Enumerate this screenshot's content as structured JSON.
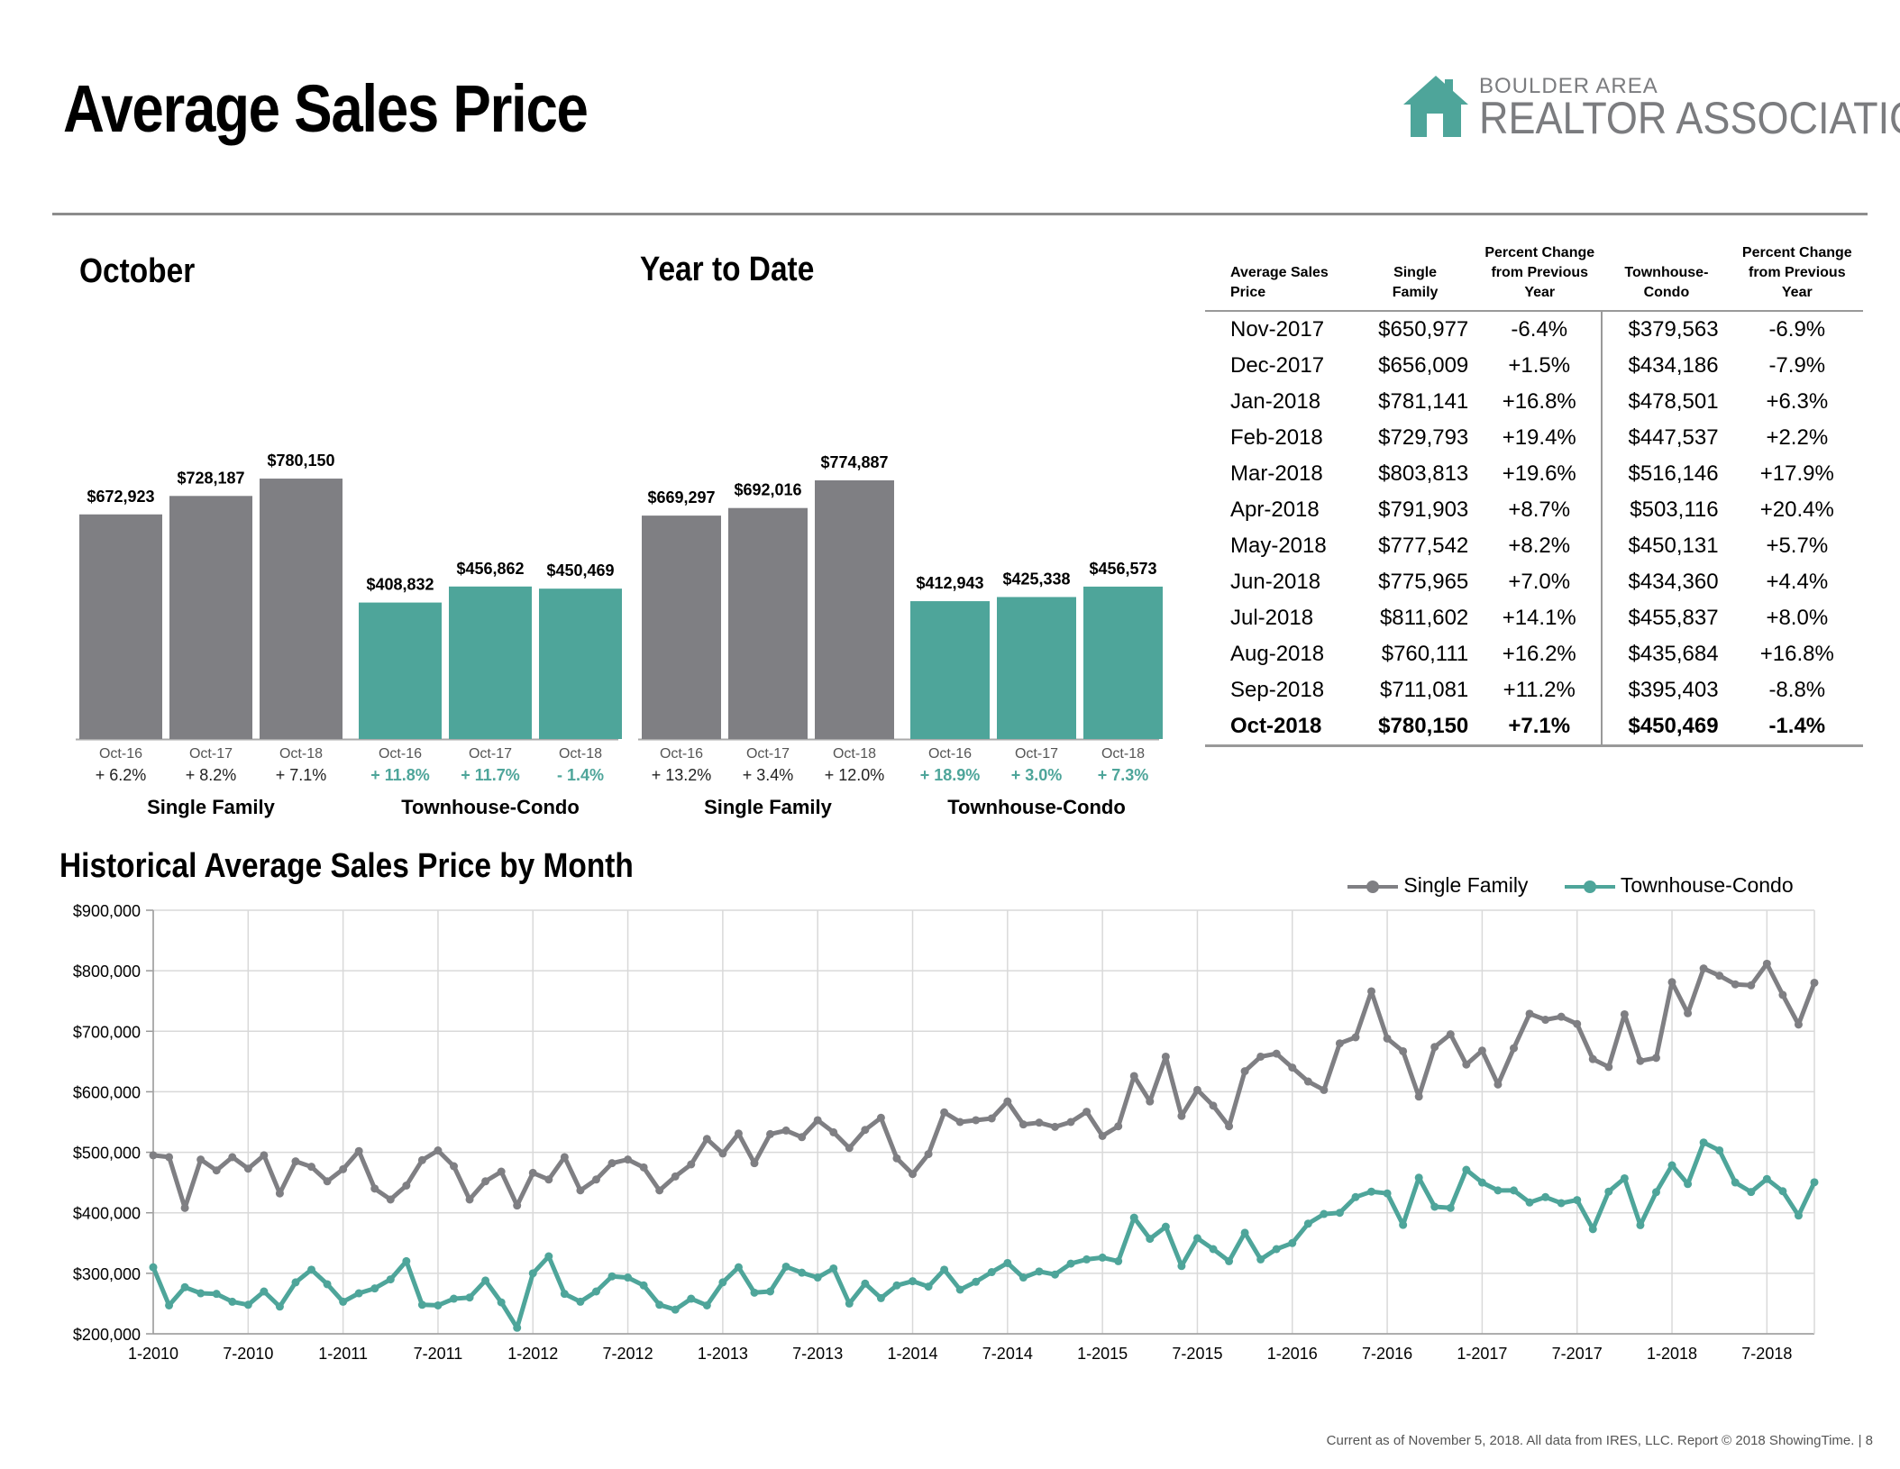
{
  "header": {
    "title": "Average Sales Price",
    "logo": {
      "line1": "BOULDER AREA",
      "line2": "REALTOR ASSOCIATION",
      "icon": "house-icon",
      "color": "#4ea59a"
    }
  },
  "colors": {
    "single_family": "#7f7f83",
    "townhouse_condo": "#4ea59a"
  },
  "bar_panels": [
    {
      "title": "October",
      "groups": [
        {
          "name": "Single Family",
          "categories": [
            "Oct-16",
            "Oct-17",
            "Oct-18"
          ],
          "values": [
            672923,
            728187,
            780150
          ],
          "value_labels": [
            "$672,923",
            "$728,187",
            "$780,150"
          ],
          "changes": [
            "+ 6.2%",
            "+ 8.2%",
            "+ 7.1%"
          ]
        },
        {
          "name": "Townhouse-Condo",
          "categories": [
            "Oct-16",
            "Oct-17",
            "Oct-18"
          ],
          "values": [
            408832,
            456862,
            450469
          ],
          "value_labels": [
            "$408,832",
            "$456,862",
            "$450,469"
          ],
          "changes": [
            "+ 11.8%",
            "+ 11.7%",
            "- 1.4%"
          ]
        }
      ]
    },
    {
      "title": "Year to Date",
      "groups": [
        {
          "name": "Single Family",
          "categories": [
            "Oct-16",
            "Oct-17",
            "Oct-18"
          ],
          "values": [
            669297,
            692016,
            774887
          ],
          "value_labels": [
            "$669,297",
            "$692,016",
            "$774,887"
          ],
          "changes": [
            "+ 13.2%",
            "+ 3.4%",
            "+ 12.0%"
          ]
        },
        {
          "name": "Townhouse-Condo",
          "categories": [
            "Oct-16",
            "Oct-17",
            "Oct-18"
          ],
          "values": [
            412943,
            425338,
            456573
          ],
          "value_labels": [
            "$412,943",
            "$425,338",
            "$456,573"
          ],
          "changes": [
            "+ 18.9%",
            "+ 3.0%",
            "+ 7.3%"
          ]
        }
      ]
    }
  ],
  "table": {
    "headers": [
      "Average Sales\nPrice",
      "Single\nFamily",
      "Percent Change\nfrom Previous\nYear",
      "Townhouse-\nCondo",
      "Percent Change\nfrom Previous\nYear"
    ],
    "rows": [
      [
        "Nov-2017",
        "$650,977",
        "-6.4%",
        "$379,563",
        "-6.9%"
      ],
      [
        "Dec-2017",
        "$656,009",
        "+1.5%",
        "$434,186",
        "-7.9%"
      ],
      [
        "Jan-2018",
        "$781,141",
        "+16.8%",
        "$478,501",
        "+6.3%"
      ],
      [
        "Feb-2018",
        "$729,793",
        "+19.4%",
        "$447,537",
        "+2.2%"
      ],
      [
        "Mar-2018",
        "$803,813",
        "+19.6%",
        "$516,146",
        "+17.9%"
      ],
      [
        "Apr-2018",
        "$791,903",
        "+8.7%",
        "$503,116",
        "+20.4%"
      ],
      [
        "May-2018",
        "$777,542",
        "+8.2%",
        "$450,131",
        "+5.7%"
      ],
      [
        "Jun-2018",
        "$775,965",
        "+7.0%",
        "$434,360",
        "+4.4%"
      ],
      [
        "Jul-2018",
        "$811,602",
        "+14.1%",
        "$455,837",
        "+8.0%"
      ],
      [
        "Aug-2018",
        "$760,111",
        "+16.2%",
        "$435,684",
        "+16.8%"
      ],
      [
        "Sep-2018",
        "$711,081",
        "+11.2%",
        "$395,403",
        "-8.8%"
      ],
      [
        "Oct-2018",
        "$780,150",
        "+7.1%",
        "$450,469",
        "-1.4%"
      ]
    ],
    "bold_row_index": 11
  },
  "chart_data": {
    "type": "line",
    "title": "Historical Average Sales Price by Month",
    "x_start": "1-2010",
    "x_tick_labels": [
      "1-2010",
      "7-2010",
      "1-2011",
      "7-2011",
      "1-2012",
      "7-2012",
      "1-2013",
      "7-2013",
      "1-2014",
      "7-2014",
      "1-2015",
      "7-2015",
      "1-2016",
      "7-2016",
      "1-2017",
      "7-2017",
      "1-2018",
      "7-2018"
    ],
    "y_tick_labels": [
      "$200,000",
      "$300,000",
      "$400,000",
      "$500,000",
      "$600,000",
      "$700,000",
      "$800,000",
      "$900,000"
    ],
    "ylim": [
      200000,
      900000
    ],
    "grid": true,
    "legend": "top-right",
    "series": [
      {
        "name": "Single Family",
        "values": [
          495000,
          492000,
          408000,
          488000,
          470000,
          492000,
          473000,
          495000,
          432000,
          485000,
          476000,
          452000,
          472000,
          502000,
          440000,
          422000,
          445000,
          487000,
          503000,
          477000,
          422000,
          452000,
          468000,
          412000,
          466000,
          455000,
          492000,
          437000,
          455000,
          482000,
          488000,
          475000,
          437000,
          460000,
          480000,
          522000,
          498000,
          531000,
          482000,
          530000,
          536000,
          525000,
          553000,
          533000,
          507000,
          537000,
          557000,
          490000,
          464000,
          497000,
          566000,
          550000,
          553000,
          556000,
          584000,
          546000,
          549000,
          542000,
          550000,
          567000,
          527000,
          543000,
          626000,
          584000,
          658000,
          560000,
          603000,
          577000,
          543000,
          634000,
          658000,
          663000,
          640000,
          617000,
          603000,
          680000,
          690000,
          766000,
          688000,
          667000,
          592000,
          674000,
          695000,
          645000,
          668000,
          612000,
          672000,
          729000,
          719000,
          724000,
          712000,
          654000,
          641000,
          728000,
          650977,
          656009,
          781141,
          729793,
          803813,
          791903,
          777542,
          775965,
          811602,
          760111,
          711081,
          780150
        ]
      },
      {
        "name": "Townhouse-Condo",
        "values": [
          310000,
          247000,
          277000,
          267000,
          266000,
          253000,
          248000,
          270000,
          245000,
          285000,
          306000,
          282000,
          253000,
          267000,
          275000,
          290000,
          320000,
          248000,
          247000,
          258000,
          260000,
          288000,
          252000,
          210000,
          300000,
          328000,
          266000,
          253000,
          270000,
          295000,
          293000,
          280000,
          248000,
          240000,
          258000,
          247000,
          285000,
          310000,
          268000,
          270000,
          311000,
          301000,
          293000,
          308000,
          250000,
          283000,
          259000,
          280000,
          287000,
          278000,
          306000,
          273000,
          286000,
          302000,
          317000,
          293000,
          303000,
          298000,
          316000,
          323000,
          326000,
          320000,
          392000,
          357000,
          377000,
          312000,
          358000,
          340000,
          320000,
          367000,
          323000,
          340000,
          350000,
          382000,
          398000,
          400000,
          426000,
          435000,
          432000,
          380000,
          458000,
          410000,
          408000,
          471000,
          450000,
          437000,
          437000,
          417000,
          426000,
          416000,
          421000,
          373000,
          435000,
          457000,
          379563,
          434186,
          478501,
          447537,
          516146,
          503116,
          450131,
          434360,
          455837,
          435684,
          395403,
          450469
        ]
      }
    ]
  },
  "footer": {
    "note": "Current as of November 5, 2018. All data from IRES, LLC. Report © 2018 ShowingTime.  |  8"
  }
}
